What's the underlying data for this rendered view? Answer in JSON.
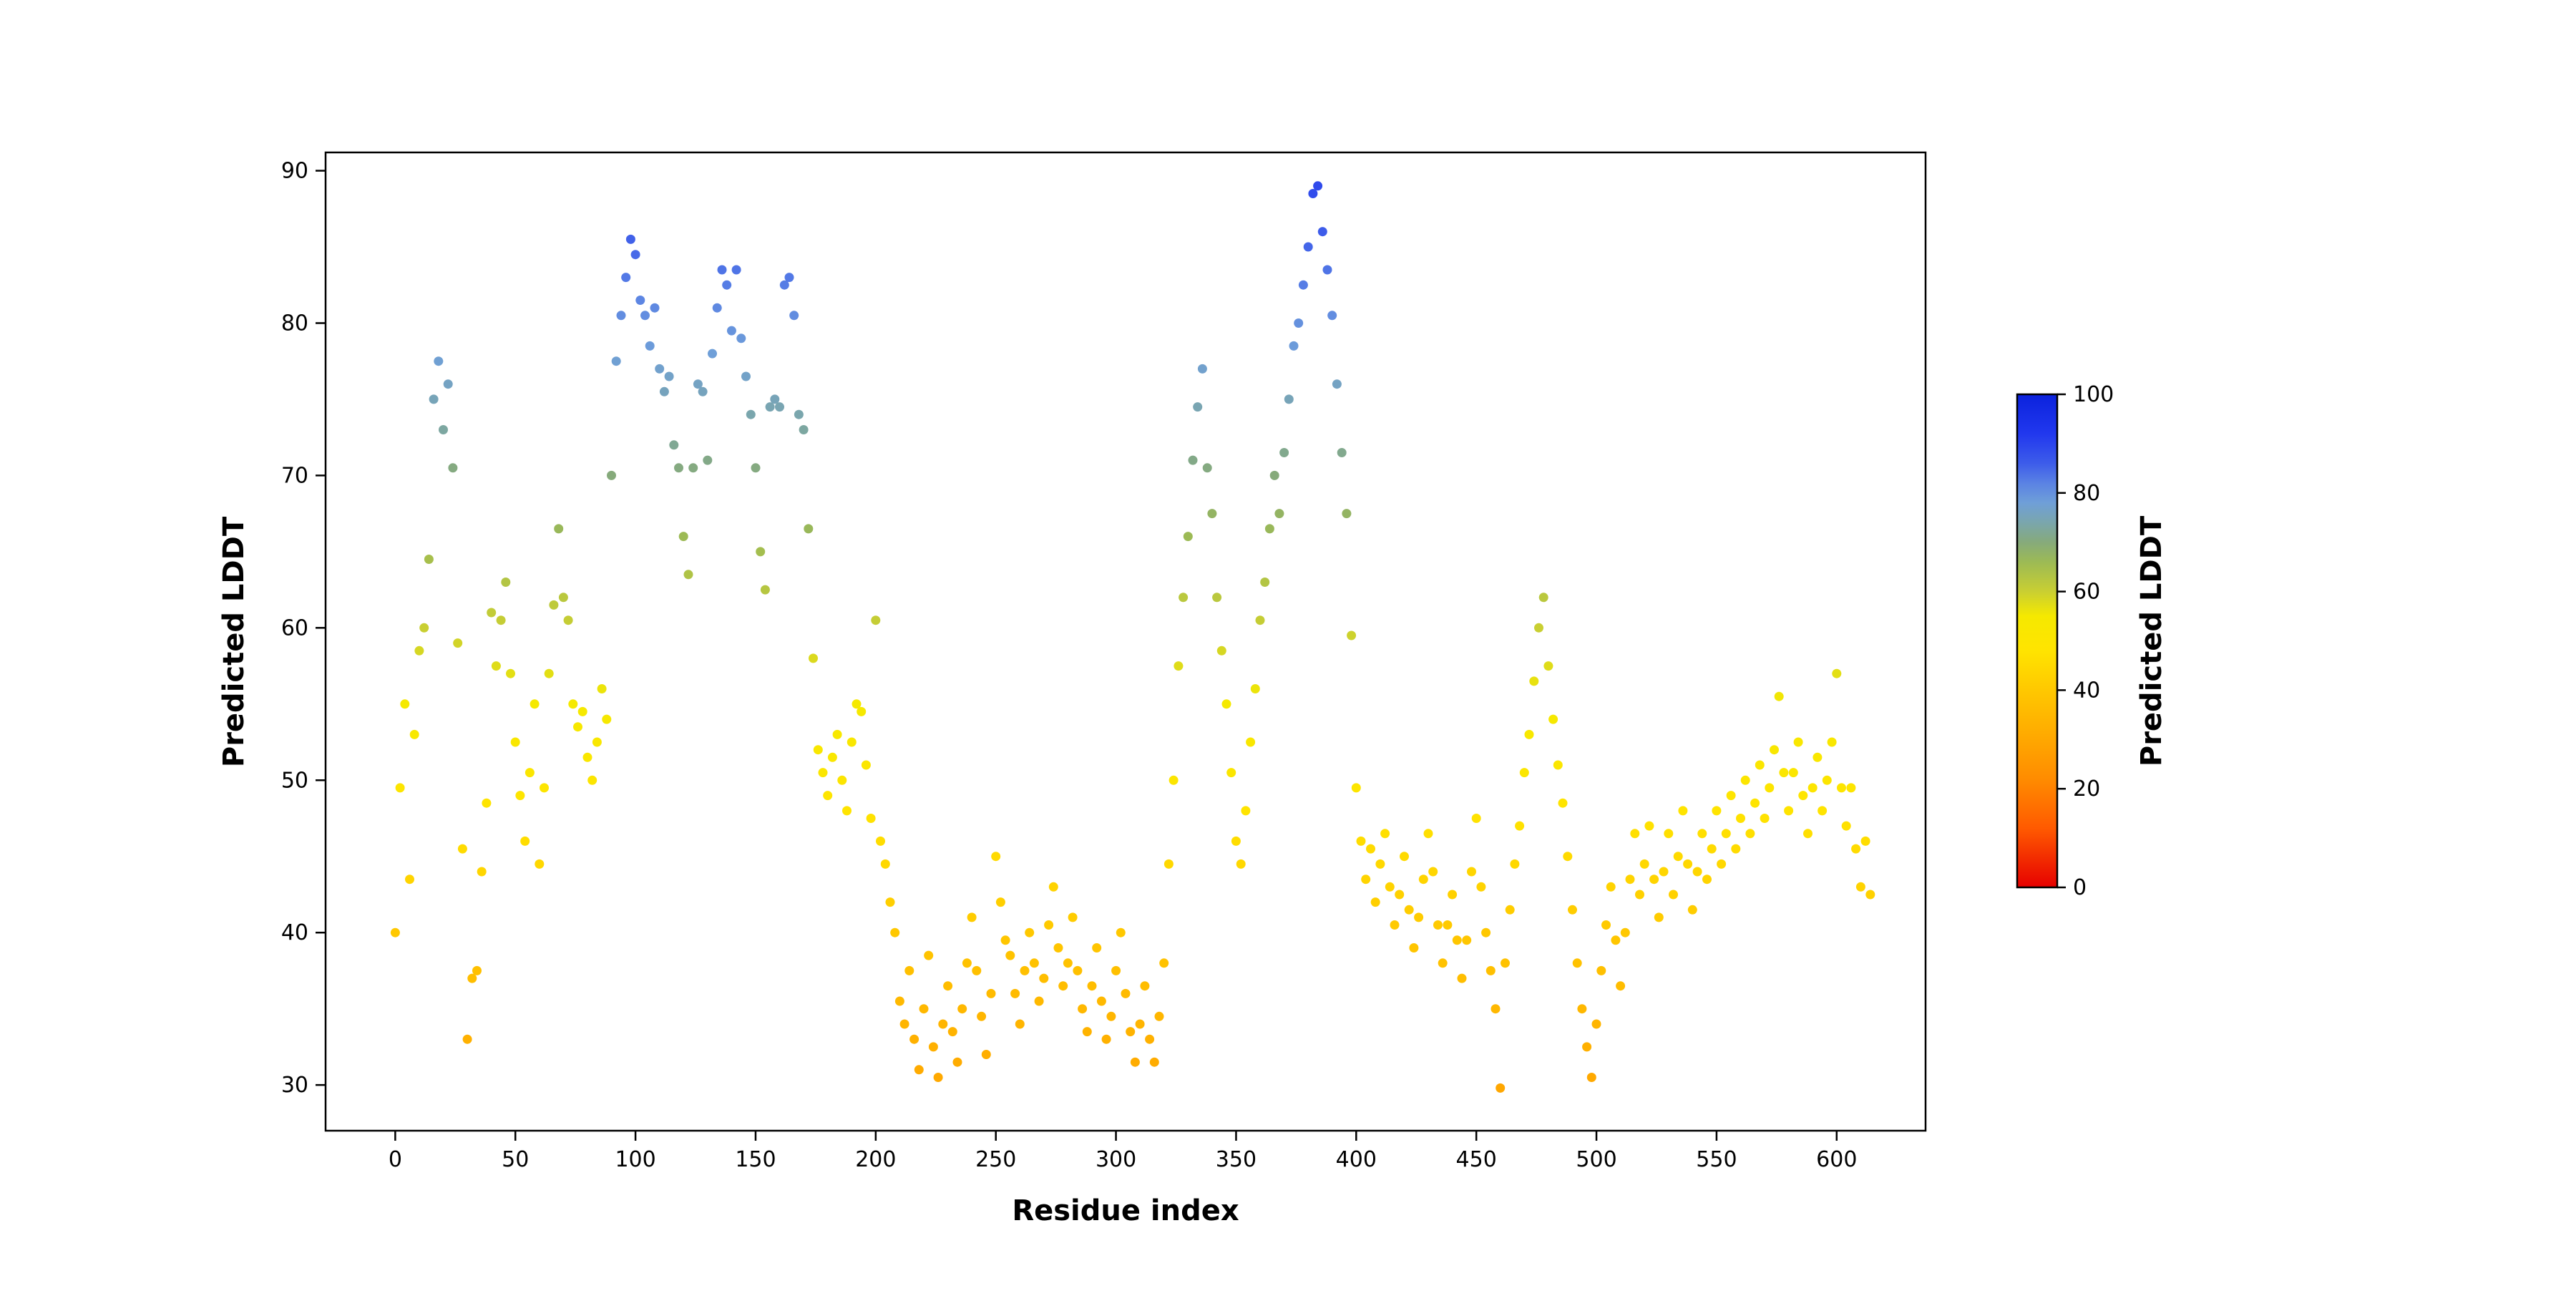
{
  "figure": {
    "background": "#ffffff",
    "spine_color": "#000000",
    "text_color": "#000000"
  },
  "chart_data": {
    "type": "scatter",
    "title": "",
    "xlabel": "Residue index",
    "ylabel": "Predicted LDDT",
    "colorbar_label": "Predicted LDDT",
    "legend": "none",
    "grid": false,
    "marker": "dot",
    "xlim": [
      -29,
      637
    ],
    "ylim": [
      27,
      91.2
    ],
    "x_ticks": [
      0,
      50,
      100,
      150,
      200,
      250,
      300,
      350,
      400,
      450,
      500,
      550,
      600
    ],
    "y_ticks": [
      30,
      40,
      50,
      60,
      70,
      80,
      90
    ],
    "colorbar_range": [
      0,
      100
    ],
    "colorbar_ticks": [
      0,
      20,
      40,
      60,
      80,
      100
    ],
    "colormap": "plddt red-orange-yellow-green-blue",
    "colormap_stops": [
      {
        "v": 0,
        "color": "#e60000"
      },
      {
        "v": 12,
        "color": "#ff5a00"
      },
      {
        "v": 22,
        "color": "#ff8c00"
      },
      {
        "v": 32,
        "color": "#ffae00"
      },
      {
        "v": 40,
        "color": "#ffc800"
      },
      {
        "v": 48,
        "color": "#ffe400"
      },
      {
        "v": 55,
        "color": "#f5e900"
      },
      {
        "v": 60,
        "color": "#c9cf32"
      },
      {
        "v": 66,
        "color": "#9cba55"
      },
      {
        "v": 70,
        "color": "#86aa7b"
      },
      {
        "v": 74,
        "color": "#7aa6ad"
      },
      {
        "v": 78,
        "color": "#6f9fd8"
      },
      {
        "v": 82,
        "color": "#5a82e4"
      },
      {
        "v": 86,
        "color": "#3d5cea"
      },
      {
        "v": 92,
        "color": "#2138ee"
      },
      {
        "v": 100,
        "color": "#0b22dd"
      }
    ],
    "points": [
      [
        0,
        40
      ],
      [
        2,
        49.5
      ],
      [
        4,
        55
      ],
      [
        6,
        43.5
      ],
      [
        8,
        53
      ],
      [
        10,
        58.5
      ],
      [
        12,
        60
      ],
      [
        14,
        64.5
      ],
      [
        16,
        75
      ],
      [
        18,
        77.5
      ],
      [
        20,
        73
      ],
      [
        22,
        76
      ],
      [
        24,
        70.5
      ],
      [
        26,
        59
      ],
      [
        28,
        45.5
      ],
      [
        30,
        33
      ],
      [
        32,
        37
      ],
      [
        34,
        37.5
      ],
      [
        36,
        44
      ],
      [
        38,
        48.5
      ],
      [
        40,
        61
      ],
      [
        42,
        57.5
      ],
      [
        44,
        60.5
      ],
      [
        46,
        63
      ],
      [
        48,
        57
      ],
      [
        50,
        52.5
      ],
      [
        52,
        49
      ],
      [
        54,
        46
      ],
      [
        56,
        50.5
      ],
      [
        58,
        55
      ],
      [
        60,
        44.5
      ],
      [
        62,
        49.5
      ],
      [
        64,
        57
      ],
      [
        66,
        61.5
      ],
      [
        68,
        66.5
      ],
      [
        70,
        62
      ],
      [
        72,
        60.5
      ],
      [
        74,
        55
      ],
      [
        76,
        53.5
      ],
      [
        78,
        54.5
      ],
      [
        80,
        51.5
      ],
      [
        82,
        50
      ],
      [
        84,
        52.5
      ],
      [
        86,
        56
      ],
      [
        88,
        54
      ],
      [
        90,
        70
      ],
      [
        92,
        77.5
      ],
      [
        94,
        80.5
      ],
      [
        96,
        83
      ],
      [
        98,
        85.5
      ],
      [
        100,
        84.5
      ],
      [
        102,
        81.5
      ],
      [
        104,
        80.5
      ],
      [
        106,
        78.5
      ],
      [
        108,
        81
      ],
      [
        110,
        77
      ],
      [
        112,
        75.5
      ],
      [
        114,
        76.5
      ],
      [
        116,
        72
      ],
      [
        118,
        70.5
      ],
      [
        120,
        66
      ],
      [
        122,
        63.5
      ],
      [
        124,
        70.5
      ],
      [
        126,
        76
      ],
      [
        128,
        75.5
      ],
      [
        130,
        71
      ],
      [
        132,
        78
      ],
      [
        134,
        81
      ],
      [
        136,
        83.5
      ],
      [
        138,
        82.5
      ],
      [
        140,
        79.5
      ],
      [
        142,
        83.5
      ],
      [
        144,
        79
      ],
      [
        146,
        76.5
      ],
      [
        148,
        74
      ],
      [
        150,
        70.5
      ],
      [
        152,
        65
      ],
      [
        154,
        62.5
      ],
      [
        156,
        74.5
      ],
      [
        158,
        75
      ],
      [
        160,
        74.5
      ],
      [
        162,
        82.5
      ],
      [
        164,
        83
      ],
      [
        166,
        80.5
      ],
      [
        168,
        74
      ],
      [
        170,
        73
      ],
      [
        172,
        66.5
      ],
      [
        174,
        58
      ],
      [
        176,
        52
      ],
      [
        178,
        50.5
      ],
      [
        180,
        49
      ],
      [
        182,
        51.5
      ],
      [
        184,
        53
      ],
      [
        186,
        50
      ],
      [
        188,
        48
      ],
      [
        190,
        52.5
      ],
      [
        192,
        55
      ],
      [
        194,
        54.5
      ],
      [
        196,
        51
      ],
      [
        198,
        47.5
      ],
      [
        200,
        60.5
      ],
      [
        202,
        46
      ],
      [
        204,
        44.5
      ],
      [
        206,
        42
      ],
      [
        208,
        40
      ],
      [
        210,
        35.5
      ],
      [
        212,
        34
      ],
      [
        214,
        37.5
      ],
      [
        216,
        33
      ],
      [
        218,
        31
      ],
      [
        220,
        35
      ],
      [
        222,
        38.5
      ],
      [
        224,
        32.5
      ],
      [
        226,
        30.5
      ],
      [
        228,
        34
      ],
      [
        230,
        36.5
      ],
      [
        232,
        33.5
      ],
      [
        234,
        31.5
      ],
      [
        236,
        35
      ],
      [
        238,
        38
      ],
      [
        240,
        41
      ],
      [
        242,
        37.5
      ],
      [
        244,
        34.5
      ],
      [
        246,
        32
      ],
      [
        248,
        36
      ],
      [
        250,
        45
      ],
      [
        252,
        42
      ],
      [
        254,
        39.5
      ],
      [
        256,
        38.5
      ],
      [
        258,
        36
      ],
      [
        260,
        34
      ],
      [
        262,
        37.5
      ],
      [
        264,
        40
      ],
      [
        266,
        38
      ],
      [
        268,
        35.5
      ],
      [
        270,
        37
      ],
      [
        272,
        40.5
      ],
      [
        274,
        43
      ],
      [
        276,
        39
      ],
      [
        278,
        36.5
      ],
      [
        280,
        38
      ],
      [
        282,
        41
      ],
      [
        284,
        37.5
      ],
      [
        286,
        35
      ],
      [
        288,
        33.5
      ],
      [
        290,
        36.5
      ],
      [
        292,
        39
      ],
      [
        294,
        35.5
      ],
      [
        296,
        33
      ],
      [
        298,
        34.5
      ],
      [
        300,
        37.5
      ],
      [
        302,
        40
      ],
      [
        304,
        36
      ],
      [
        306,
        33.5
      ],
      [
        308,
        31.5
      ],
      [
        310,
        34
      ],
      [
        312,
        36.5
      ],
      [
        314,
        33
      ],
      [
        316,
        31.5
      ],
      [
        318,
        34.5
      ],
      [
        320,
        38
      ],
      [
        322,
        44.5
      ],
      [
        324,
        50
      ],
      [
        326,
        57.5
      ],
      [
        328,
        62
      ],
      [
        330,
        66
      ],
      [
        332,
        71
      ],
      [
        334,
        74.5
      ],
      [
        336,
        77
      ],
      [
        338,
        70.5
      ],
      [
        340,
        67.5
      ],
      [
        342,
        62
      ],
      [
        344,
        58.5
      ],
      [
        346,
        55
      ],
      [
        348,
        50.5
      ],
      [
        350,
        46
      ],
      [
        352,
        44.5
      ],
      [
        354,
        48
      ],
      [
        356,
        52.5
      ],
      [
        358,
        56
      ],
      [
        360,
        60.5
      ],
      [
        362,
        63
      ],
      [
        364,
        66.5
      ],
      [
        366,
        70
      ],
      [
        368,
        67.5
      ],
      [
        370,
        71.5
      ],
      [
        372,
        75
      ],
      [
        374,
        78.5
      ],
      [
        376,
        80
      ],
      [
        378,
        82.5
      ],
      [
        380,
        85
      ],
      [
        382,
        88.5
      ],
      [
        384,
        89
      ],
      [
        386,
        86
      ],
      [
        388,
        83.5
      ],
      [
        390,
        80.5
      ],
      [
        392,
        76
      ],
      [
        394,
        71.5
      ],
      [
        396,
        67.5
      ],
      [
        398,
        59.5
      ],
      [
        400,
        49.5
      ],
      [
        402,
        46
      ],
      [
        404,
        43.5
      ],
      [
        406,
        45.5
      ],
      [
        408,
        42
      ],
      [
        410,
        44.5
      ],
      [
        412,
        46.5
      ],
      [
        414,
        43
      ],
      [
        416,
        40.5
      ],
      [
        418,
        42.5
      ],
      [
        420,
        45
      ],
      [
        422,
        41.5
      ],
      [
        424,
        39
      ],
      [
        426,
        41
      ],
      [
        428,
        43.5
      ],
      [
        430,
        46.5
      ],
      [
        432,
        44
      ],
      [
        434,
        40.5
      ],
      [
        436,
        38
      ],
      [
        438,
        40.5
      ],
      [
        440,
        42.5
      ],
      [
        442,
        39.5
      ],
      [
        444,
        37
      ],
      [
        446,
        39.5
      ],
      [
        448,
        44
      ],
      [
        450,
        47.5
      ],
      [
        452,
        43
      ],
      [
        454,
        40
      ],
      [
        456,
        37.5
      ],
      [
        458,
        35
      ],
      [
        460,
        29.8
      ],
      [
        462,
        38
      ],
      [
        464,
        41.5
      ],
      [
        466,
        44.5
      ],
      [
        468,
        47
      ],
      [
        470,
        50.5
      ],
      [
        472,
        53
      ],
      [
        474,
        56.5
      ],
      [
        476,
        60
      ],
      [
        478,
        62
      ],
      [
        480,
        57.5
      ],
      [
        482,
        54
      ],
      [
        484,
        51
      ],
      [
        486,
        48.5
      ],
      [
        488,
        45
      ],
      [
        490,
        41.5
      ],
      [
        492,
        38
      ],
      [
        494,
        35
      ],
      [
        496,
        32.5
      ],
      [
        498,
        30.5
      ],
      [
        500,
        34
      ],
      [
        502,
        37.5
      ],
      [
        504,
        40.5
      ],
      [
        506,
        43
      ],
      [
        508,
        39.5
      ],
      [
        510,
        36.5
      ],
      [
        512,
        40
      ],
      [
        514,
        43.5
      ],
      [
        516,
        46.5
      ],
      [
        518,
        42.5
      ],
      [
        520,
        44.5
      ],
      [
        522,
        47
      ],
      [
        524,
        43.5
      ],
      [
        526,
        41
      ],
      [
        528,
        44
      ],
      [
        530,
        46.5
      ],
      [
        532,
        42.5
      ],
      [
        534,
        45
      ],
      [
        536,
        48
      ],
      [
        538,
        44.5
      ],
      [
        540,
        41.5
      ],
      [
        542,
        44
      ],
      [
        544,
        46.5
      ],
      [
        546,
        43.5
      ],
      [
        548,
        45.5
      ],
      [
        550,
        48
      ],
      [
        552,
        44.5
      ],
      [
        554,
        46.5
      ],
      [
        556,
        49
      ],
      [
        558,
        45.5
      ],
      [
        560,
        47.5
      ],
      [
        562,
        50
      ],
      [
        564,
        46.5
      ],
      [
        566,
        48.5
      ],
      [
        568,
        51
      ],
      [
        570,
        47.5
      ],
      [
        572,
        49.5
      ],
      [
        574,
        52
      ],
      [
        576,
        55.5
      ],
      [
        578,
        50.5
      ],
      [
        580,
        48
      ],
      [
        582,
        50.5
      ],
      [
        584,
        52.5
      ],
      [
        586,
        49
      ],
      [
        588,
        46.5
      ],
      [
        590,
        49.5
      ],
      [
        592,
        51.5
      ],
      [
        594,
        48
      ],
      [
        596,
        50
      ],
      [
        598,
        52.5
      ],
      [
        600,
        57
      ],
      [
        602,
        49.5
      ],
      [
        604,
        47
      ],
      [
        606,
        49.5
      ],
      [
        608,
        45.5
      ],
      [
        610,
        43
      ],
      [
        612,
        46
      ],
      [
        614,
        42.5
      ]
    ]
  }
}
